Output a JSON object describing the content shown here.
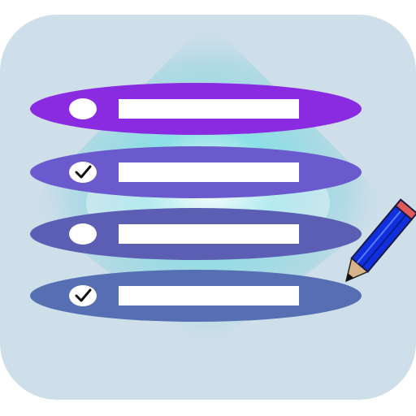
{
  "app_icon": {
    "icon_name": "checklist-app-icon",
    "background_color": "#cfdfea",
    "glow_color": "#6fd3db",
    "items": [
      {
        "checked": false,
        "color": "#8a2be2"
      },
      {
        "checked": true,
        "color": "#6a5acd"
      },
      {
        "checked": false,
        "color": "#5b5eb3"
      },
      {
        "checked": true,
        "color": "#566fb2"
      }
    ],
    "pencil": {
      "icon_name": "pencil-icon",
      "body_color": "#1030e0",
      "tip_color": "#d9b48a",
      "lead_color": "#111111",
      "eraser_color": "#e05a5a"
    }
  }
}
